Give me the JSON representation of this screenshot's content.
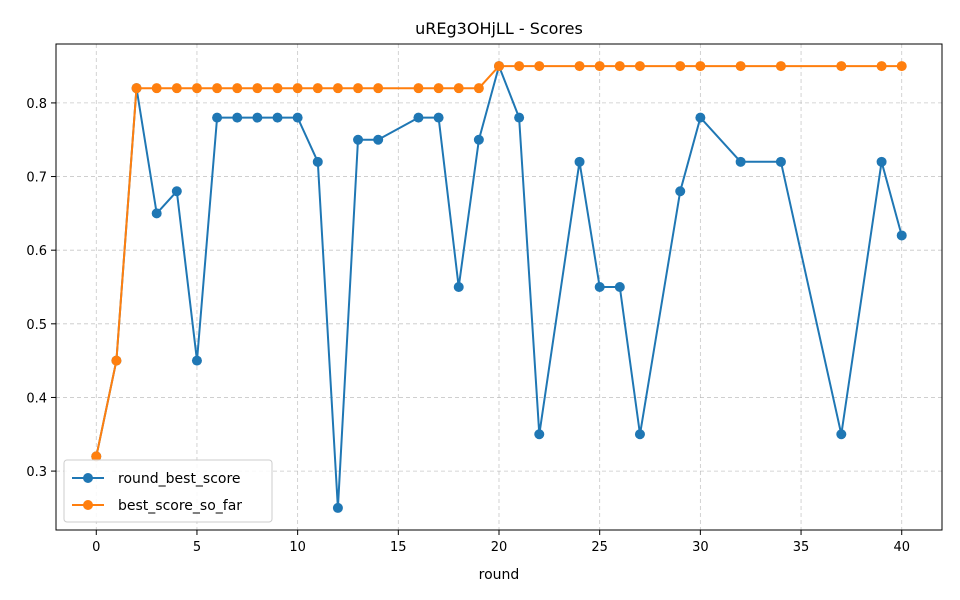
{
  "chart_data": {
    "type": "line",
    "title": "uREg3OHjLL - Scores",
    "xlabel": "round",
    "ylabel": "",
    "xlim": [
      -2,
      42
    ],
    "ylim": [
      0.22,
      0.88
    ],
    "xticks": [
      0,
      5,
      10,
      15,
      20,
      25,
      30,
      35,
      40
    ],
    "yticks": [
      0.3,
      0.4,
      0.5,
      0.6,
      0.7,
      0.8
    ],
    "grid": true,
    "legend_position": "lower-left",
    "series": [
      {
        "name": "round_best_score",
        "color": "#1f77b4",
        "marker": "circle",
        "x": [
          0,
          1,
          2,
          3,
          4,
          5,
          6,
          7,
          8,
          9,
          10,
          11,
          12,
          13,
          14,
          16,
          17,
          18,
          19,
          20,
          21,
          22,
          24,
          25,
          26,
          27,
          29,
          30,
          32,
          34,
          37,
          39,
          40
        ],
        "y": [
          0.32,
          0.45,
          0.82,
          0.65,
          0.68,
          0.45,
          0.78,
          0.78,
          0.78,
          0.78,
          0.78,
          0.72,
          0.25,
          0.75,
          0.75,
          0.78,
          0.78,
          0.55,
          0.75,
          0.85,
          0.78,
          0.35,
          0.72,
          0.55,
          0.55,
          0.35,
          0.68,
          0.78,
          0.72,
          0.72,
          0.35,
          0.72,
          0.62
        ]
      },
      {
        "name": "best_score_so_far",
        "color": "#ff7f0e",
        "marker": "circle",
        "x": [
          0,
          1,
          2,
          3,
          4,
          5,
          6,
          7,
          8,
          9,
          10,
          11,
          12,
          13,
          14,
          16,
          17,
          18,
          19,
          20,
          21,
          22,
          24,
          25,
          26,
          27,
          29,
          30,
          32,
          34,
          37,
          39,
          40
        ],
        "y": [
          0.32,
          0.45,
          0.82,
          0.82,
          0.82,
          0.82,
          0.82,
          0.82,
          0.82,
          0.82,
          0.82,
          0.82,
          0.82,
          0.82,
          0.82,
          0.82,
          0.82,
          0.82,
          0.82,
          0.85,
          0.85,
          0.85,
          0.85,
          0.85,
          0.85,
          0.85,
          0.85,
          0.85,
          0.85,
          0.85,
          0.85,
          0.85,
          0.85
        ]
      }
    ]
  }
}
